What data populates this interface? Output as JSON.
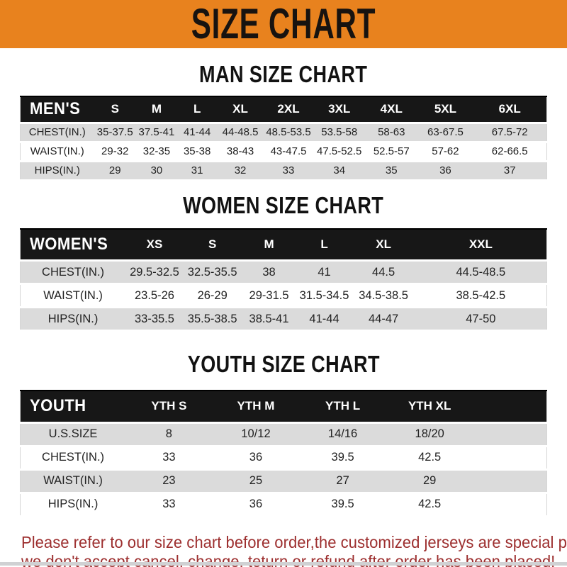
{
  "banner": {
    "title": "SIZE CHART"
  },
  "colors": {
    "banner_bg": "#E8821E",
    "banner_text": "#171310",
    "table_header_bg": "#171717",
    "table_header_text": "#FFFFFF",
    "row_alt_bg": "#DBDBDB",
    "row_bg": "#FFFFFF",
    "footer_text": "#9D2F2F"
  },
  "sections": [
    {
      "heading": "MAN SIZE CHART",
      "header_label": "MEN'S",
      "columns": [
        "S",
        "M",
        "L",
        "XL",
        "2XL",
        "3XL",
        "4XL",
        "5XL",
        "6XL"
      ],
      "rows": [
        {
          "label": "CHEST(IN.)",
          "values": [
            "35-37.5",
            "37.5-41",
            "41-44",
            "44-48.5",
            "48.5-53.5",
            "53.5-58",
            "58-63",
            "63-67.5",
            "67.5-72"
          ]
        },
        {
          "label": "WAIST(IN.)",
          "values": [
            "29-32",
            "32-35",
            "35-38",
            "38-43",
            "43-47.5",
            "47.5-52.5",
            "52.5-57",
            "57-62",
            "62-66.5"
          ]
        },
        {
          "label": "HIPS(IN.)",
          "values": [
            "29",
            "30",
            "31",
            "32",
            "33",
            "34",
            "35",
            "36",
            "37"
          ]
        }
      ]
    },
    {
      "heading": "WOMEN SIZE CHART",
      "header_label": "WOMEN'S",
      "columns": [
        "XS",
        "S",
        "M",
        "L",
        "XL",
        "XXL"
      ],
      "rows": [
        {
          "label": "CHEST(IN.)",
          "values": [
            "29.5-32.5",
            "32.5-35.5",
            "38",
            "41",
            "44.5",
            "44.5-48.5"
          ]
        },
        {
          "label": "WAIST(IN.)",
          "values": [
            "23.5-26",
            "26-29",
            "29-31.5",
            "31.5-34.5",
            "34.5-38.5",
            "38.5-42.5"
          ]
        },
        {
          "label": "HIPS(IN.)",
          "values": [
            "33-35.5",
            "35.5-38.5",
            "38.5-41",
            "41-44",
            "44-47",
            "47-50"
          ]
        }
      ]
    },
    {
      "heading": "YOUTH SIZE CHART",
      "header_label": "YOUTH",
      "columns": [
        "YTH S",
        "YTH M",
        "YTH L",
        "YTH XL"
      ],
      "rows": [
        {
          "label": "U.S.SIZE",
          "values": [
            "8",
            "10/12",
            "14/16",
            "18/20"
          ]
        },
        {
          "label": "CHEST(IN.)",
          "values": [
            "33",
            "36",
            "39.5",
            "42.5"
          ]
        },
        {
          "label": "WAIST(IN.)",
          "values": [
            "23",
            "25",
            "27",
            "29"
          ]
        },
        {
          "label": "HIPS(IN.)",
          "values": [
            "33",
            "36",
            "39.5",
            "42.5"
          ]
        }
      ]
    }
  ],
  "footer": {
    "line1": "Please refer to our size chart before order,the customized jerseys are special products,",
    "line2": "we don't accept cancel, change, teturn or refund after order has been placed!"
  },
  "chart_data": [
    {
      "type": "table",
      "title": "MAN SIZE CHART",
      "columns": [
        "MEN'S",
        "S",
        "M",
        "L",
        "XL",
        "2XL",
        "3XL",
        "4XL",
        "5XL",
        "6XL"
      ],
      "rows": [
        [
          "CHEST(IN.)",
          "35-37.5",
          "37.5-41",
          "41-44",
          "44-48.5",
          "48.5-53.5",
          "53.5-58",
          "58-63",
          "63-67.5",
          "67.5-72"
        ],
        [
          "WAIST(IN.)",
          "29-32",
          "32-35",
          "35-38",
          "38-43",
          "43-47.5",
          "47.5-52.5",
          "52.5-57",
          "57-62",
          "62-66.5"
        ],
        [
          "HIPS(IN.)",
          "29",
          "30",
          "31",
          "32",
          "33",
          "34",
          "35",
          "36",
          "37"
        ]
      ]
    },
    {
      "type": "table",
      "title": "WOMEN SIZE CHART",
      "columns": [
        "WOMEN'S",
        "XS",
        "S",
        "M",
        "L",
        "XL",
        "XXL"
      ],
      "rows": [
        [
          "CHEST(IN.)",
          "29.5-32.5",
          "32.5-35.5",
          "38",
          "41",
          "44.5",
          "44.5-48.5"
        ],
        [
          "WAIST(IN.)",
          "23.5-26",
          "26-29",
          "29-31.5",
          "31.5-34.5",
          "34.5-38.5",
          "38.5-42.5"
        ],
        [
          "HIPS(IN.)",
          "33-35.5",
          "35.5-38.5",
          "38.5-41",
          "41-44",
          "44-47",
          "47-50"
        ]
      ]
    },
    {
      "type": "table",
      "title": "YOUTH SIZE CHART",
      "columns": [
        "YOUTH",
        "YTH S",
        "YTH M",
        "YTH L",
        "YTH XL"
      ],
      "rows": [
        [
          "U.S.SIZE",
          "8",
          "10/12",
          "14/16",
          "18/20"
        ],
        [
          "CHEST(IN.)",
          "33",
          "36",
          "39.5",
          "42.5"
        ],
        [
          "WAIST(IN.)",
          "23",
          "25",
          "27",
          "29"
        ],
        [
          "HIPS(IN.)",
          "33",
          "36",
          "39.5",
          "42.5"
        ]
      ]
    }
  ]
}
